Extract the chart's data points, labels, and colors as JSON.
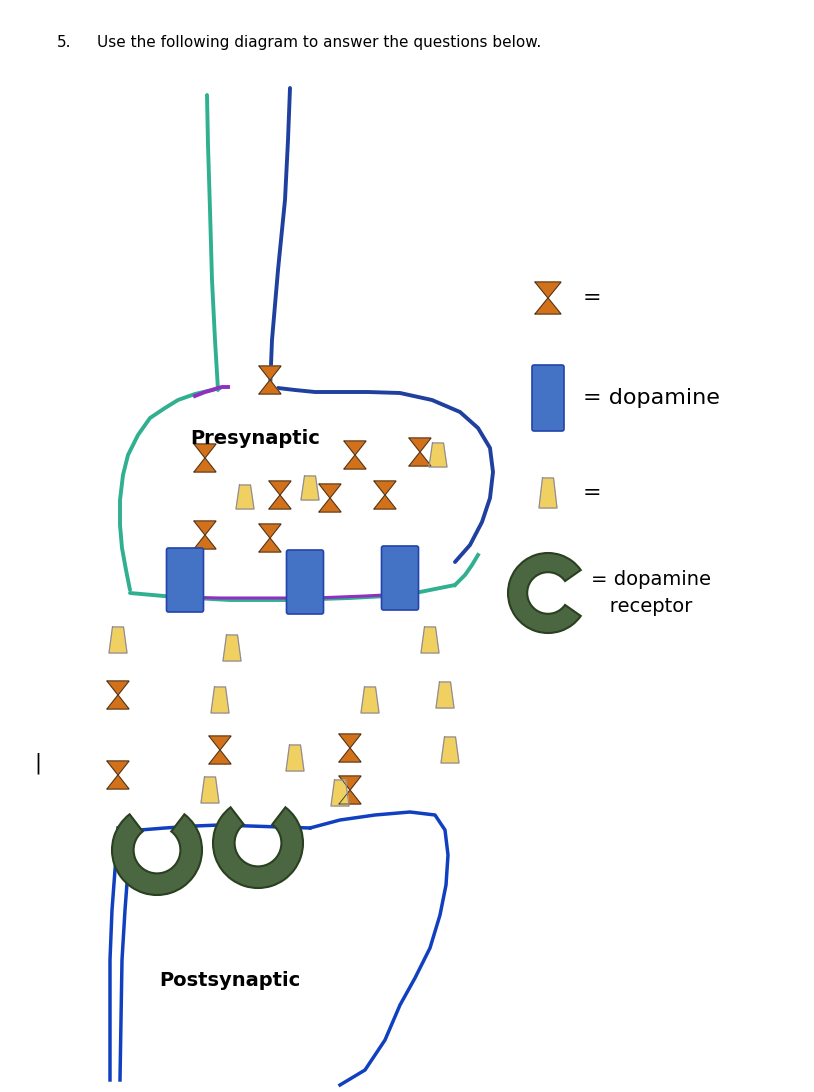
{
  "title_num": "5.",
  "title_text": "Use the following diagram to answer the questions below.",
  "presynaptic_label": "Presynaptic",
  "postsynaptic_label": "Postsynaptic",
  "orange_color": "#D2711A",
  "blue_color": "#4472C4",
  "yellow_color": "#F0D060",
  "green_color": "#4A6741",
  "bg_color": "#ffffff",
  "teal_color": "#30B090",
  "purple_color": "#9030C0",
  "navy_color": "#2040A0",
  "dark_blue": "#1040C0",
  "legend_eq": "=",
  "legend_dopamine": "= dopamine",
  "legend_receptor": "= dopamine\n   receptor"
}
